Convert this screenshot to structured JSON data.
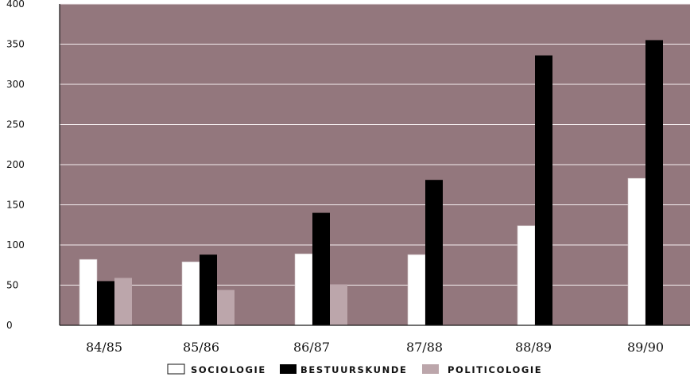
{
  "chart_data": {
    "type": "bar",
    "categories": [
      "84/85",
      "85/86",
      "86/87",
      "87/88",
      "88/89",
      "89/90"
    ],
    "series": [
      {
        "name": "SOCIOLOGIE",
        "values": [
          82,
          79,
          89,
          88,
          124,
          183
        ]
      },
      {
        "name": "BESTUURSKUNDE",
        "values": [
          55,
          88,
          140,
          181,
          336,
          355
        ]
      },
      {
        "name": "POLITICOLOGIE",
        "values": [
          59,
          44,
          51,
          null,
          null,
          null
        ]
      }
    ],
    "yticks": [
      0,
      50,
      100,
      150,
      200,
      250,
      300,
      350,
      400
    ],
    "ylim": [
      0,
      400
    ],
    "grid": true,
    "legend_position": "bottom-center",
    "colors": {
      "background": "#93777d",
      "grid": "#f5eef0",
      "axis": "#1a1a1a",
      "series": [
        "#ffffff",
        "#000000",
        "#bca6ab"
      ],
      "bar_outline": "#cfc2c5"
    }
  }
}
